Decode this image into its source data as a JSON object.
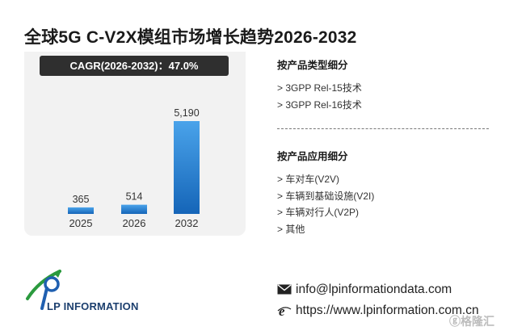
{
  "title": "全球5G C-V2X模组市场增长趋势2026-2032",
  "cagr": "CAGR(2026-2032)：47.0%",
  "chart_data": {
    "type": "bar",
    "categories": [
      "2025",
      "2026",
      "2032"
    ],
    "values": [
      365,
      514,
      5190
    ],
    "value_labels": [
      "365",
      "514",
      "5,190"
    ],
    "ylim": [
      0,
      5190
    ],
    "bar_color": "#2b7fd0",
    "grid": false
  },
  "sidebar": {
    "section1": {
      "heading": "按产品类型细分",
      "items": [
        "> 3GPP Rel-15技术",
        "> 3GPP Rel-16技术"
      ]
    },
    "section2": {
      "heading": "按产品应用细分",
      "items": [
        "> 车对车(V2V)",
        "> 车辆到基础设施(V2I)",
        "> 车辆对行人(V2P)",
        "> 其他"
      ]
    }
  },
  "logo_text": "LP INFORMATION",
  "contact": {
    "email": "info@lpinformationdata.com",
    "website": "https://www.lpinformation.com.cn"
  },
  "corner_logo": "格隆汇",
  "colors": {
    "accent_blue": "#2b7fd0",
    "badge_bg": "#2f2f2f",
    "panel_bg": "#f2f2f2"
  }
}
